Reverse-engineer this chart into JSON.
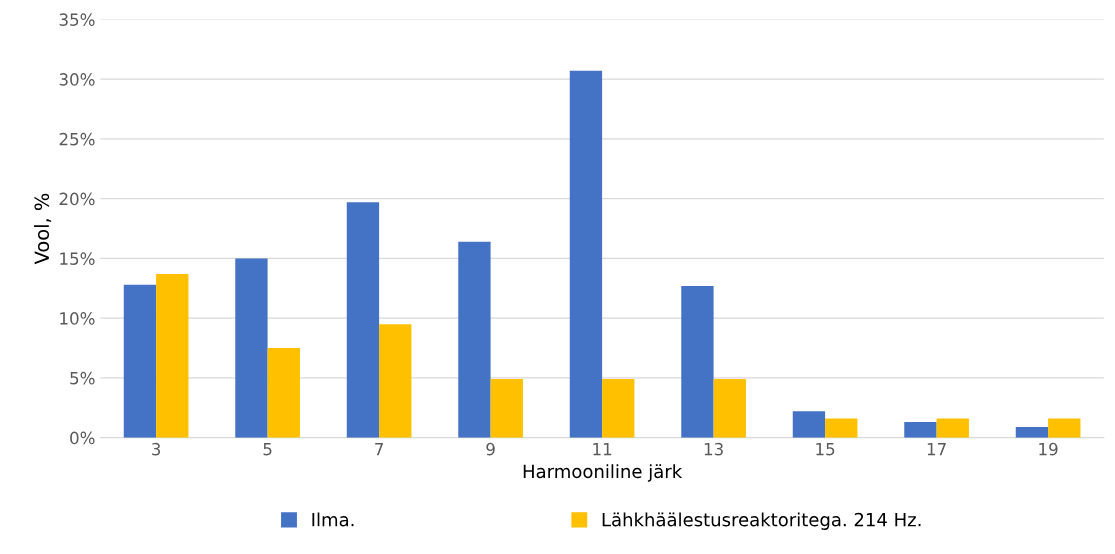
{
  "chart_data": {
    "type": "bar",
    "xlabel": "Harmooniline järk",
    "ylabel": "Vool, %",
    "categories": [
      "3",
      "5",
      "7",
      "9",
      "11",
      "13",
      "15",
      "17",
      "19"
    ],
    "series": [
      {
        "name": "Ilma.",
        "color": "#4472c4",
        "values": [
          12.8,
          15.0,
          19.7,
          16.4,
          30.7,
          12.7,
          2.2,
          1.3,
          0.9
        ]
      },
      {
        "name": "Lähkhäälestusreaktoritega. 214 Hz.",
        "color": "#ffc000",
        "values": [
          13.7,
          7.5,
          9.5,
          4.9,
          4.9,
          4.9,
          1.6,
          1.6,
          1.6
        ]
      }
    ],
    "ylim": [
      0,
      35
    ],
    "yticks": [
      {
        "value": 0,
        "label": "0%"
      },
      {
        "value": 5,
        "label": "5%"
      },
      {
        "value": 10,
        "label": "10%"
      },
      {
        "value": 15,
        "label": "15%"
      },
      {
        "value": 20,
        "label": "20%"
      },
      {
        "value": 25,
        "label": "25%"
      },
      {
        "value": 30,
        "label": "30%"
      },
      {
        "value": 35,
        "label": "35%"
      }
    ],
    "grid": "y",
    "legend": "bottom"
  }
}
